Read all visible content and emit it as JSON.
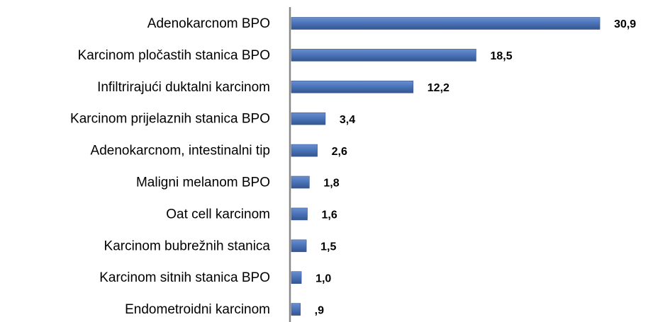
{
  "chart_data": {
    "type": "bar",
    "orientation": "horizontal",
    "categories": [
      "Adenokarcnom BPO",
      "Karcinom pločastih stanica BPO",
      "Infiltrirajući duktalni karcinom",
      "Karcinom prijelaznih stanica BPO",
      "Adenokarcnom, intestinalni tip",
      "Maligni melanom BPO",
      "Oat cell karcinom",
      "Karcinom bubrežnih stanica",
      "Karcinom sitnih stanica BPO",
      "Endometroidni karcinom"
    ],
    "values": [
      30.9,
      18.5,
      12.2,
      3.4,
      2.6,
      1.8,
      1.6,
      1.5,
      1.0,
      0.9
    ],
    "value_labels": [
      "30,9",
      "18,5",
      "12,2",
      "3,4",
      "2,6",
      "1,8",
      "1,6",
      "1,5",
      "1,0",
      ",9"
    ],
    "color": "#4a72b8"
  }
}
